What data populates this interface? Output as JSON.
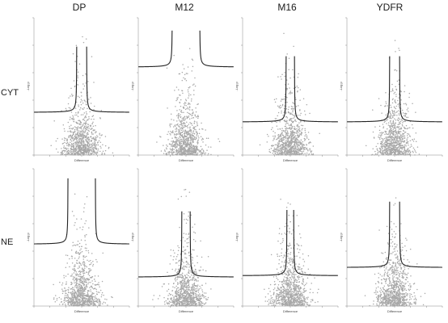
{
  "chart_data": {
    "type": "scatter",
    "layout": "grid",
    "columns": [
      "DP",
      "M12",
      "M16",
      "YDFR"
    ],
    "rows": [
      "CYT",
      "NE"
    ],
    "xlabel": "Difference",
    "ylabel": "-Log p",
    "panels": [
      {
        "row": "CYT",
        "column": "DP",
        "threshold": {
          "s0": 0.6,
          "y_asymptote": 3.1
        }
      },
      {
        "row": "CYT",
        "column": "M12",
        "threshold": {
          "s0": 1.7,
          "y_asymptote": 6.4
        }
      },
      {
        "row": "CYT",
        "column": "M16",
        "threshold": {
          "s0": 0.5,
          "y_asymptote": 2.4
        }
      },
      {
        "row": "CYT",
        "column": "YDFR",
        "threshold": {
          "s0": 0.6,
          "y_asymptote": 2.4
        }
      },
      {
        "row": "NE",
        "column": "DP",
        "threshold": {
          "s0": 1.7,
          "y_asymptote": 4.5
        }
      },
      {
        "row": "NE",
        "column": "M12",
        "threshold": {
          "s0": 0.5,
          "y_asymptote": 2.1
        }
      },
      {
        "row": "NE",
        "column": "M16",
        "threshold": {
          "s0": 0.4,
          "y_asymptote": 2.2
        }
      },
      {
        "row": "NE",
        "column": "YDFR",
        "threshold": {
          "s0": 0.6,
          "y_asymptote": 2.8
        }
      }
    ]
  }
}
